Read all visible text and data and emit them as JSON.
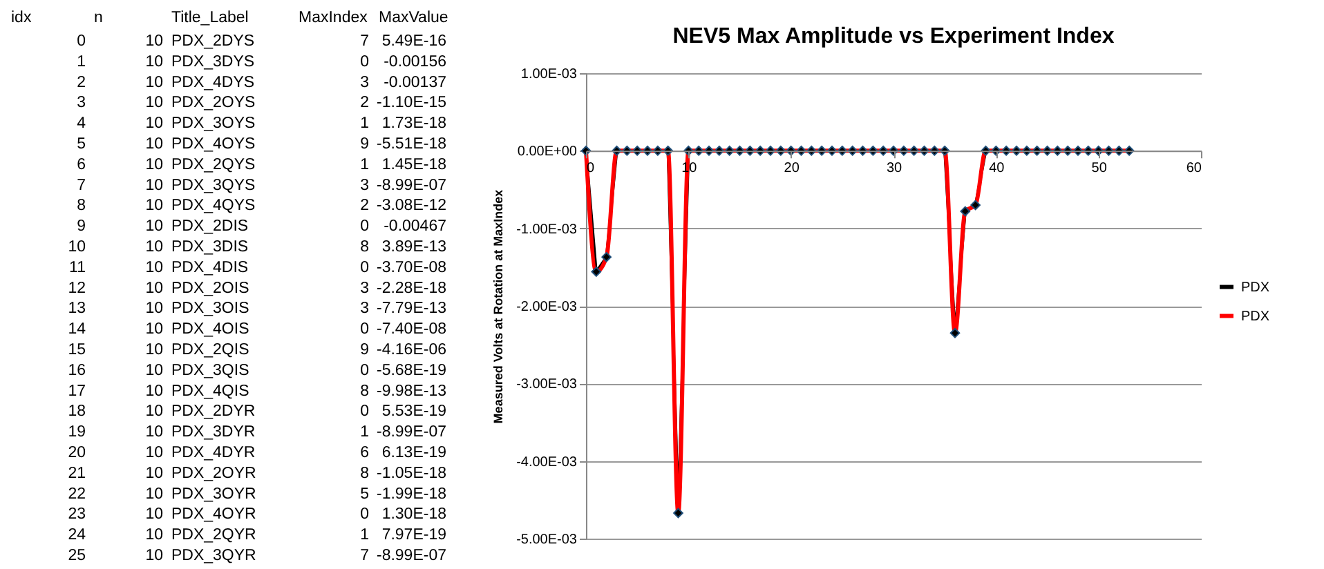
{
  "chart_data": [
    {
      "type": "other",
      "categories": [
        "idx",
        "n",
        "Title_Label",
        "MaxIndex",
        "MaxValue"
      ],
      "cell_labels": [
        [
          "0",
          "10",
          "PDX_2DYS",
          "7",
          "5.49E-16"
        ],
        [
          "1",
          "10",
          "PDX_3DYS",
          "0",
          "-0.00156"
        ],
        [
          "2",
          "10",
          "PDX_4DYS",
          "3",
          "-0.00137"
        ],
        [
          "3",
          "10",
          "PDX_2OYS",
          "2",
          "-1.10E-15"
        ],
        [
          "4",
          "10",
          "PDX_3OYS",
          "1",
          "1.73E-18"
        ],
        [
          "5",
          "10",
          "PDX_4OYS",
          "9",
          "-5.51E-18"
        ],
        [
          "6",
          "10",
          "PDX_2QYS",
          "1",
          "1.45E-18"
        ],
        [
          "7",
          "10",
          "PDX_3QYS",
          "3",
          "-8.99E-07"
        ],
        [
          "8",
          "10",
          "PDX_4QYS",
          "2",
          "-3.08E-12"
        ],
        [
          "9",
          "10",
          "PDX_2DIS",
          "0",
          "-0.00467"
        ],
        [
          "10",
          "10",
          "PDX_3DIS",
          "8",
          "3.89E-13"
        ],
        [
          "11",
          "10",
          "PDX_4DIS",
          "0",
          "-3.70E-08"
        ],
        [
          "12",
          "10",
          "PDX_2OIS",
          "3",
          "-2.28E-18"
        ],
        [
          "13",
          "10",
          "PDX_3OIS",
          "3",
          "-7.79E-13"
        ],
        [
          "14",
          "10",
          "PDX_4OIS",
          "0",
          "-7.40E-08"
        ],
        [
          "15",
          "10",
          "PDX_2QIS",
          "9",
          "-4.16E-06"
        ],
        [
          "16",
          "10",
          "PDX_3QIS",
          "0",
          "-5.68E-19"
        ],
        [
          "17",
          "10",
          "PDX_4QIS",
          "8",
          "-9.98E-13"
        ],
        [
          "18",
          "10",
          "PDX_2DYR",
          "0",
          "5.53E-19"
        ],
        [
          "19",
          "10",
          "PDX_3DYR",
          "1",
          "-8.99E-07"
        ],
        [
          "20",
          "10",
          "PDX_4DYR",
          "6",
          "6.13E-19"
        ],
        [
          "21",
          "10",
          "PDX_2OYR",
          "8",
          "-1.05E-18"
        ],
        [
          "22",
          "10",
          "PDX_3OYR",
          "5",
          "-1.99E-18"
        ],
        [
          "23",
          "10",
          "PDX_4OYR",
          "0",
          "1.30E-18"
        ],
        [
          "24",
          "10",
          "PDX_2QYR",
          "1",
          "7.97E-19"
        ],
        [
          "25",
          "10",
          "PDX_3QYR",
          "7",
          "-8.99E-07"
        ]
      ]
    },
    {
      "type": "line",
      "title": "NEV5  Max Amplitude vs  Experiment Index",
      "ylabel": "Measured Volts at Rotation at MaxIndex",
      "x": [
        0,
        1,
        2,
        3,
        4,
        5,
        6,
        7,
        8,
        9,
        10,
        11,
        12,
        13,
        14,
        15,
        16,
        17,
        18,
        19,
        20,
        21,
        22,
        23,
        24,
        25,
        26,
        27,
        28,
        29,
        30,
        31,
        32,
        33,
        34,
        35,
        36,
        37,
        38,
        39,
        40,
        41,
        42,
        43,
        44,
        45,
        46,
        47,
        48,
        49,
        50,
        51,
        52,
        53
      ],
      "xlim": [
        0,
        60
      ],
      "xticks": [
        0,
        10,
        20,
        30,
        40,
        50,
        60
      ],
      "ylim": [
        -0.005,
        0.001
      ],
      "yticks": [
        {
          "value": -0.005,
          "label": "-5.00E-03"
        },
        {
          "value": -0.004,
          "label": "-4.00E-03"
        },
        {
          "value": -0.003,
          "label": "-3.00E-03"
        },
        {
          "value": -0.002,
          "label": "-2.00E-03"
        },
        {
          "value": -0.001,
          "label": "-1.00E-03"
        },
        {
          "value": 0,
          "label": "0.00E+00"
        },
        {
          "value": 0.001,
          "label": "1.00E-03"
        }
      ],
      "grid": "y",
      "legend": "right",
      "series": [
        {
          "name": "PDX",
          "color": "#000000",
          "marker": "diamond",
          "values": [
            0,
            -0.00156,
            -0.00137,
            0,
            0,
            0,
            0,
            0,
            0,
            -0.00467,
            0,
            0,
            0,
            0,
            0,
            0,
            0,
            0,
            0,
            0,
            0,
            0,
            0,
            0,
            0,
            0,
            0,
            0,
            0,
            0,
            0,
            0,
            0,
            0,
            0,
            0,
            -0.00235,
            -0.00078,
            -0.0007,
            0,
            0,
            0,
            0,
            0,
            0,
            0,
            0,
            0,
            0,
            0,
            0,
            0,
            0,
            0
          ]
        },
        {
          "name": "PDX",
          "color": "#ff0000",
          "marker": "none",
          "values": [
            0,
            -0.00156,
            -0.00137,
            0,
            0,
            0,
            0,
            0,
            0,
            -0.00467,
            0,
            0,
            0,
            0,
            0,
            0,
            0,
            0,
            0,
            0,
            0,
            0,
            0,
            0,
            0,
            0,
            0,
            0,
            0,
            0,
            0,
            0,
            0,
            0,
            0,
            0,
            -0.00235,
            -0.00078,
            -0.0007,
            0,
            0,
            0,
            0,
            0,
            0,
            0,
            0,
            0,
            0,
            0,
            0,
            0,
            0,
            0
          ]
        }
      ]
    }
  ]
}
